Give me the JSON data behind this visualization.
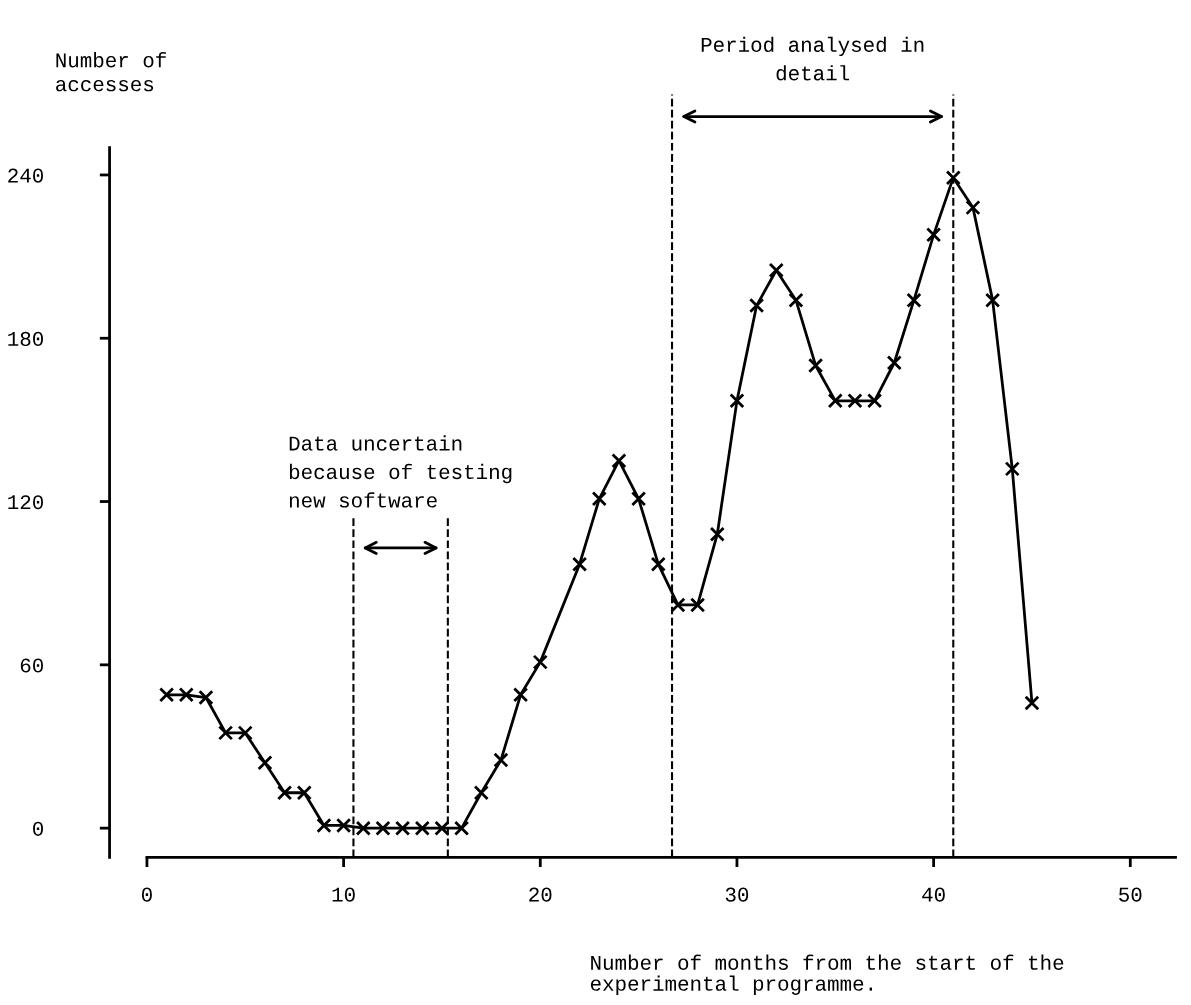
{
  "chart_data": {
    "type": "line",
    "xlabel": "Number of months from the start of the\nexperimental programme.",
    "ylabel": "Number of\naccesses",
    "x": [
      1,
      2,
      3,
      4,
      5,
      6,
      7,
      8,
      9,
      10,
      11,
      12,
      13,
      14,
      15,
      16,
      17,
      18,
      19,
      20,
      22,
      23,
      24,
      25,
      26,
      27,
      28,
      29,
      30,
      31,
      32,
      33,
      34,
      35,
      36,
      37,
      38,
      39,
      40,
      41,
      42,
      43,
      44,
      45
    ],
    "series": [
      {
        "color": "#000000",
        "values": [
          49,
          49,
          48,
          35,
          35,
          24,
          13,
          13,
          1,
          1,
          0,
          0,
          0,
          0,
          0,
          0,
          13,
          25,
          49,
          61,
          97,
          121,
          135,
          121,
          97,
          82,
          82,
          108,
          157,
          192,
          205,
          194,
          170,
          157,
          157,
          157,
          171,
          194,
          218,
          239,
          228,
          194,
          132,
          46
        ]
      }
    ],
    "xlim": [
      -1.9,
      52.3
    ],
    "ylim": [
      -10.7,
      250
    ],
    "xticks": [
      0,
      10,
      20,
      30,
      40,
      50
    ],
    "yticks": [
      0,
      60,
      120,
      180,
      240
    ],
    "marker": "cross",
    "line_style": "solid",
    "grid": false,
    "legend": false,
    "ref_lines": [
      {
        "axis": "x",
        "value": 10.5,
        "line_style": "dashed"
      },
      {
        "axis": "x",
        "value": 15.3,
        "line_style": "dashed"
      },
      {
        "axis": "x",
        "value": 26.7,
        "line_style": "dashed"
      },
      {
        "axis": "x",
        "value": 41,
        "line_style": "dashed"
      }
    ],
    "annotations": [
      "Data uncertain\nbecause of testing\nnew software",
      "Period analysed in\ndetail"
    ]
  }
}
